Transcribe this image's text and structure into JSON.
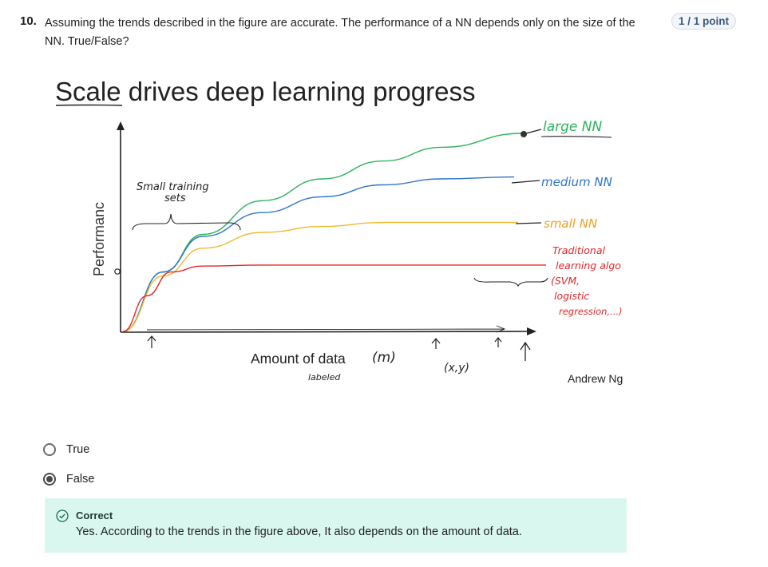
{
  "question": {
    "number": "10.",
    "text": "Assuming the trends described in the figure are accurate. The performance of a NN depends only on the size of the NN. True/False?",
    "points": "1 / 1 point"
  },
  "figure": {
    "title": "Scale drives deep learning progress",
    "ylabel": "Performanc",
    "xlabel": "Amount of data",
    "annotations": {
      "small_training_sets": [
        "Small training",
        "sets"
      ],
      "m": "(m)",
      "labeled": "labeled",
      "xy": "(x,y)",
      "traditional": [
        "Traditional",
        "learning algo",
        "(SVM,",
        "logistic",
        "regression,...)"
      ]
    },
    "credit": "Andrew Ng",
    "colors": {
      "large": "#2bb35a",
      "medium": "#2d74c9",
      "small": "#f2b92e",
      "traditional": "#e32626",
      "ink": "#222222"
    }
  },
  "chart_data": {
    "type": "line",
    "title": "Scale drives deep learning progress",
    "xlabel": "Amount of data",
    "ylabel": "Performanc",
    "series": [
      {
        "name": "large NN",
        "x": [
          0,
          0.1,
          0.2,
          0.35,
          0.5,
          0.65,
          0.8,
          1.0
        ],
        "y": [
          0,
          0.3,
          0.49,
          0.66,
          0.77,
          0.86,
          0.93,
          1.0
        ]
      },
      {
        "name": "medium NN",
        "x": [
          0,
          0.1,
          0.2,
          0.35,
          0.5,
          0.65,
          0.8,
          1.0
        ],
        "y": [
          0,
          0.3,
          0.48,
          0.6,
          0.68,
          0.74,
          0.77,
          0.78
        ]
      },
      {
        "name": "small NN",
        "x": [
          0,
          0.1,
          0.2,
          0.35,
          0.5,
          0.65,
          0.8,
          1.0
        ],
        "y": [
          0,
          0.28,
          0.42,
          0.5,
          0.53,
          0.55,
          0.55,
          0.55
        ]
      },
      {
        "name": "Traditional learning algo",
        "x": [
          0,
          0.06,
          0.12,
          0.2,
          0.35,
          0.5,
          0.8,
          1.0
        ],
        "y": [
          0,
          0.18,
          0.3,
          0.33,
          0.335,
          0.335,
          0.335,
          0.335
        ]
      }
    ],
    "xlim": [
      0,
      1
    ],
    "ylim": [
      0,
      1.08
    ],
    "grid": false,
    "legend": "inline-right"
  },
  "options": [
    {
      "label": "True",
      "selected": false
    },
    {
      "label": "False",
      "selected": true
    }
  ],
  "feedback": {
    "title": "Correct",
    "text": "Yes. According to the trends in the figure above, It also depends on the amount of data."
  }
}
